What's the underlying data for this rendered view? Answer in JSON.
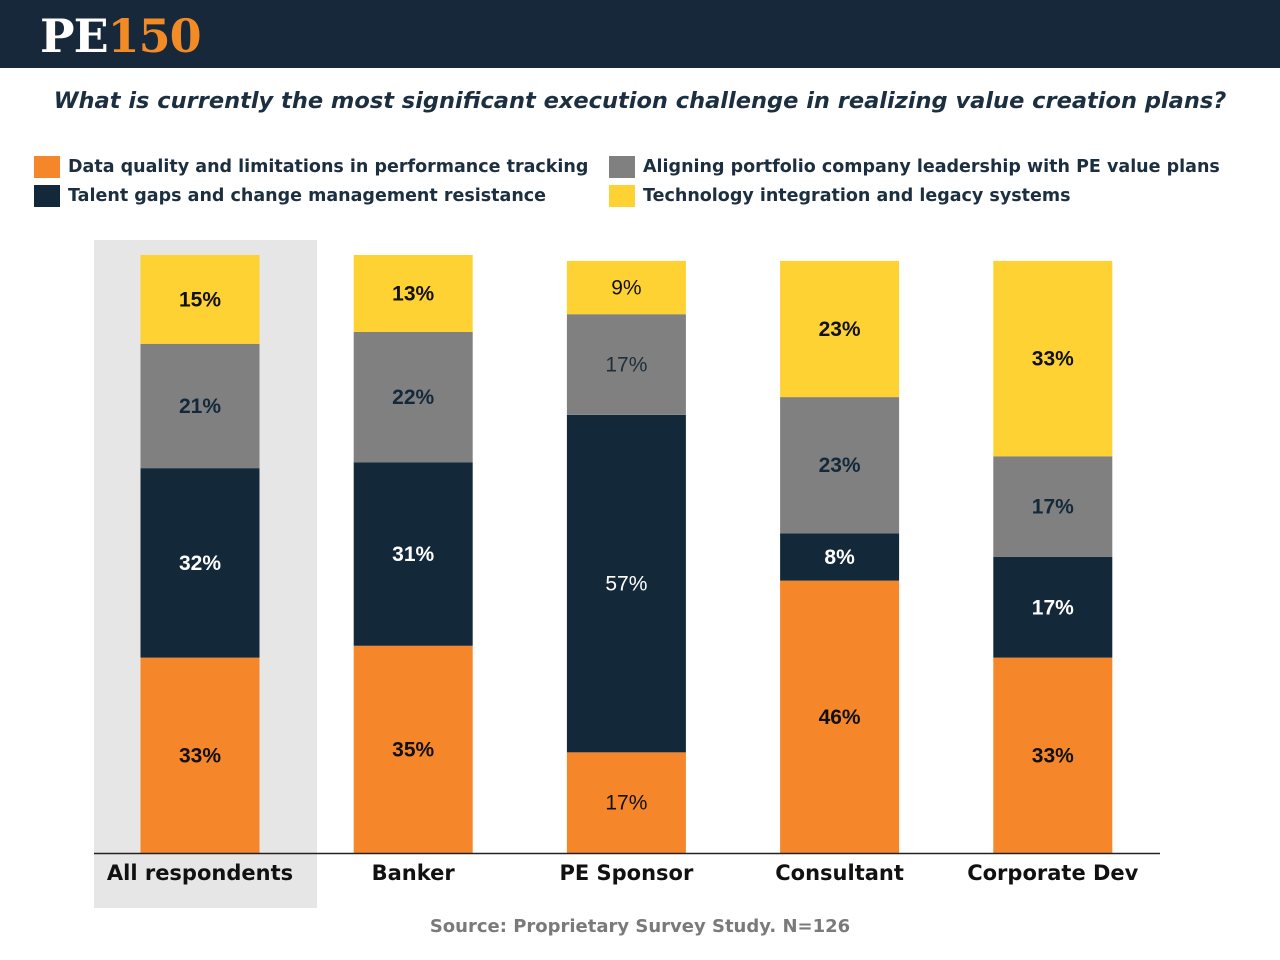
{
  "logo": {
    "pe": "PE",
    "number": "150"
  },
  "question": "What is currently the most significant execution challenge in realizing value creation plans?",
  "source": "Source:  Proprietary Survey Study. N=126",
  "colors": {
    "data_quality": "#f5862a",
    "talent": "#13293a",
    "aligning": "#808080",
    "technology": "#fed232",
    "highlight_bg": "#e6e6e6",
    "header_bg": "#16283a"
  },
  "chart_data": {
    "type": "bar",
    "stacked": true,
    "title": "What is currently the most significant execution challenge in realizing value creation plans?",
    "categories": [
      "All respondents",
      "Banker",
      "PE Sponsor",
      "Consultant",
      "Corporate Dev"
    ],
    "highlighted_category": "All respondents",
    "series": [
      {
        "key": "data_quality",
        "name": "Data quality and limitations in performance tracking",
        "color": "#f5862a",
        "values": [
          33,
          35,
          17,
          46,
          33
        ]
      },
      {
        "key": "talent",
        "name": "Talent gaps and change management resistance",
        "color": "#13293a",
        "values": [
          32,
          31,
          57,
          8,
          17
        ]
      },
      {
        "key": "aligning",
        "name": "Aligning portfolio company leadership with PE value plans",
        "color": "#808080",
        "values": [
          21,
          22,
          17,
          23,
          17
        ]
      },
      {
        "key": "technology",
        "name": "Technology integration and legacy systems",
        "color": "#fed232",
        "values": [
          15,
          13,
          9,
          23,
          33
        ]
      }
    ],
    "value_suffix": "%",
    "xlabel": "",
    "ylabel": "",
    "ylim": [
      0,
      101
    ],
    "grid": false,
    "legend_position": "top"
  }
}
